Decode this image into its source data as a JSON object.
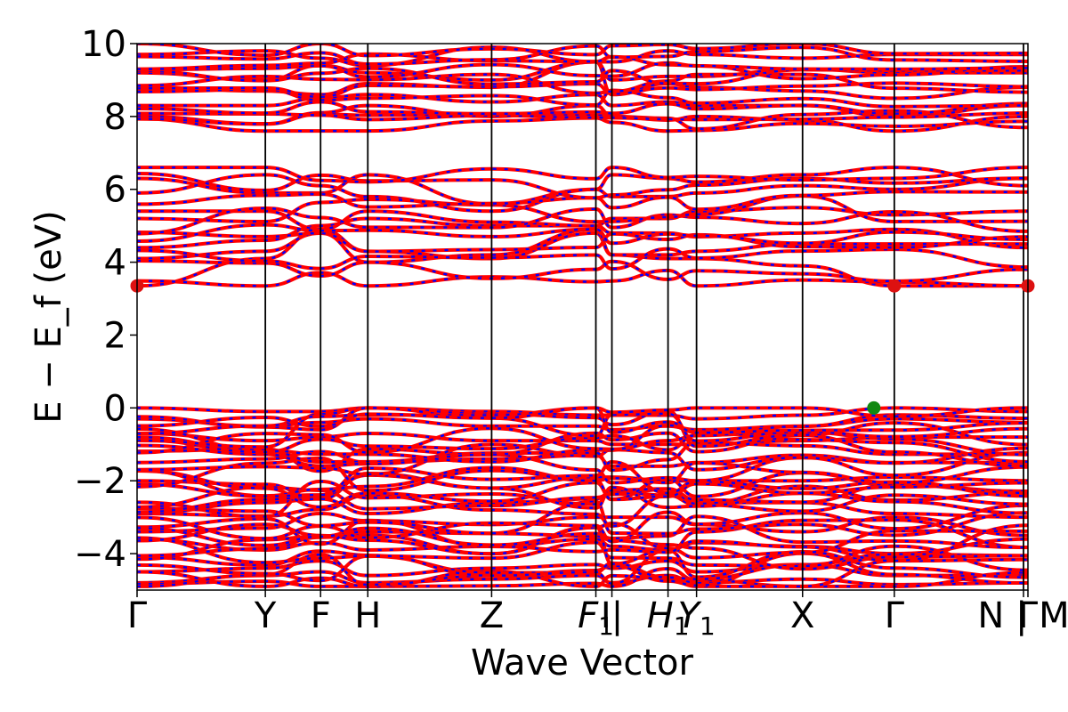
{
  "chart_data": {
    "type": "line",
    "title": "",
    "xlabel": "Wave Vector",
    "ylabel": "E − E_f (eV)",
    "ylim": [
      -5,
      10
    ],
    "yticks": [
      10,
      8,
      6,
      4,
      2,
      0,
      -2,
      -4
    ],
    "ytick_labels": [
      "10",
      "8",
      "6",
      "4",
      "2",
      "0",
      "−2",
      "−4"
    ],
    "xlim": [
      0,
      10
    ],
    "grid": false,
    "high_symmetry_points": [
      {
        "label": "Γ",
        "x": 0.0
      },
      {
        "label": "Y",
        "x": 1.44
      },
      {
        "label": "F",
        "x": 2.06
      },
      {
        "label": "H",
        "x": 2.59
      },
      {
        "label": "Z",
        "x": 3.98
      },
      {
        "label": "F",
        "sub": "1",
        "italic": true,
        "x": 5.15
      },
      {
        "label": "I|",
        "x": 5.33
      },
      {
        "label": "H",
        "sub": "1",
        "italic": true,
        "x": 5.96
      },
      {
        "label": "Y",
        "sub": "1",
        "italic": true,
        "x": 6.28
      },
      {
        "label": "X",
        "x": 7.47
      },
      {
        "label": "Γ",
        "x": 8.5
      },
      {
        "label": "N | M",
        "x": 9.95
      },
      {
        "label": "Γ",
        "x": 10.0
      }
    ],
    "band_style": {
      "solid_color": "#ff0000",
      "dash_color": "#0000ff"
    },
    "band_groups": [
      {
        "name": "valence",
        "e_min": -4.9,
        "e_max": 0.0,
        "count": 32
      },
      {
        "name": "conduction-lower",
        "e_min": 3.35,
        "e_max": 6.6,
        "count": 10
      },
      {
        "name": "conduction-upper",
        "e_min": 7.6,
        "e_max": 10.0,
        "count": 12
      }
    ],
    "series": [
      {
        "x": [
          0,
          1.44,
          2.06,
          2.59,
          3.98,
          5.15,
          5.33,
          5.96,
          6.28,
          7.47,
          8.5,
          10
        ],
        "values": [
          3.35,
          4.1,
          4.9,
          4.3,
          4.1,
          4.8,
          4.2,
          4.1,
          4.1,
          3.9,
          3.35,
          3.35
        ]
      },
      {
        "x": [
          0,
          1.44,
          2.06,
          2.59,
          3.98,
          5.15,
          5.33,
          5.96,
          6.28,
          7.47,
          8.5,
          10
        ],
        "values": [
          4.1,
          4.3,
          4.8,
          4.0,
          4.2,
          4.9,
          4.2,
          4.2,
          4.3,
          4.5,
          4.5,
          4.5
        ]
      },
      {
        "x": [
          0,
          1.44,
          2.06,
          2.59,
          3.98,
          5.15,
          5.33,
          5.96,
          6.28,
          7.47,
          8.5,
          10
        ],
        "values": [
          4.4,
          4.6,
          5.0,
          5.2,
          5.0,
          5.0,
          4.8,
          4.8,
          4.7,
          4.8,
          4.9,
          4.4
        ]
      },
      {
        "x": [
          0,
          1.44,
          2.06,
          2.59,
          3.98,
          5.15,
          5.33,
          5.96,
          6.28,
          7.47,
          8.5,
          10
        ],
        "values": [
          5.4,
          5.4,
          4.9,
          5.4,
          5.1,
          5.0,
          5.2,
          5.2,
          5.4,
          5.5,
          5.3,
          5.4
        ]
      },
      {
        "x": [
          0,
          1.44,
          2.06,
          2.59,
          3.98,
          5.15,
          5.33,
          5.96,
          6.28,
          7.47,
          8.5,
          10
        ],
        "values": [
          6.3,
          5.9,
          5.9,
          6.4,
          5.6,
          6.0,
          5.8,
          5.8,
          5.9,
          6.1,
          6.0,
          6.3
        ]
      },
      {
        "x": [
          0,
          1.44,
          2.06,
          2.59,
          3.98,
          5.15,
          5.33,
          5.96,
          6.28,
          7.47,
          8.5,
          10
        ],
        "values": [
          5.9,
          6.4,
          6.1,
          5.8,
          5.4,
          6.0,
          6.4,
          6.3,
          6.2,
          6.4,
          6.6,
          6.1
        ]
      },
      {
        "x": [
          0,
          1.44,
          2.06,
          2.59,
          3.98,
          5.15,
          5.33,
          5.96,
          6.28,
          7.47,
          8.5,
          10
        ],
        "values": [
          8.0,
          7.8,
          8.1,
          8.3,
          8.0,
          8.3,
          8.0,
          7.9,
          8.0,
          7.9,
          7.6,
          8.0
        ]
      },
      {
        "x": [
          0,
          1.44,
          2.06,
          2.59,
          3.98,
          5.15,
          5.33,
          5.96,
          6.28,
          7.47,
          8.5,
          10
        ],
        "values": [
          8.3,
          8.3,
          8.5,
          8.6,
          8.4,
          8.6,
          8.3,
          8.4,
          8.3,
          8.3,
          8.0,
          8.3
        ]
      },
      {
        "x": [
          0,
          1.44,
          2.06,
          2.59,
          3.98,
          5.15,
          5.33,
          5.96,
          6.28,
          7.47,
          8.5,
          10
        ],
        "values": [
          8.8,
          8.7,
          8.6,
          8.9,
          8.8,
          9.5,
          8.6,
          8.9,
          8.8,
          8.7,
          8.5,
          8.8
        ]
      },
      {
        "x": [
          0,
          1.44,
          2.06,
          2.59,
          3.98,
          5.15,
          5.33,
          5.96,
          6.28,
          7.47,
          8.5,
          10
        ],
        "values": [
          9.2,
          9.0,
          9.4,
          9.2,
          9.0,
          9.5,
          9.0,
          9.1,
          9.1,
          9.3,
          9.2,
          9.2
        ]
      },
      {
        "x": [
          0,
          1.44,
          2.06,
          2.59,
          3.98,
          5.15,
          5.33,
          5.96,
          6.28,
          7.47,
          8.5,
          10
        ],
        "values": [
          9.7,
          9.8,
          9.6,
          9.4,
          9.9,
          9.5,
          9.5,
          9.8,
          9.7,
          9.6,
          9.7,
          9.7
        ]
      },
      {
        "x": [
          0,
          1.44,
          2.06,
          2.59,
          3.98,
          5.15,
          5.33,
          5.96,
          6.28,
          7.47,
          8.5,
          10
        ],
        "values": [
          0.0,
          -0.1,
          -0.1,
          0.0,
          -0.1,
          -0.2,
          -0.2,
          -0.2,
          -0.3,
          -0.2,
          0.0,
          -0.1
        ]
      },
      {
        "x": [
          0,
          1.44,
          2.06,
          2.59,
          3.98,
          5.15,
          5.33,
          5.96,
          6.28,
          7.47,
          8.5,
          10
        ],
        "values": [
          -0.3,
          -0.5,
          -0.4,
          -0.3,
          -0.5,
          -0.5,
          -0.6,
          -0.5,
          -0.6,
          -0.5,
          -0.3,
          -0.4
        ]
      },
      {
        "x": [
          0,
          1.44,
          2.06,
          2.59,
          3.98,
          5.15,
          5.33,
          5.96,
          6.28,
          7.47,
          8.5,
          10
        ],
        "values": [
          -0.7,
          -0.9,
          -0.8,
          -0.7,
          -0.9,
          -0.9,
          -1.0,
          -1.0,
          -1.0,
          -0.9,
          -0.8,
          -0.8
        ]
      },
      {
        "x": [
          0,
          1.44,
          2.06,
          2.59,
          3.98,
          5.15,
          5.33,
          5.96,
          6.28,
          7.47,
          8.5,
          10
        ],
        "values": [
          -1.5,
          -1.4,
          -1.2,
          -1.5,
          -1.4,
          -1.3,
          -1.6,
          -1.6,
          -1.5,
          -1.3,
          -1.5,
          -1.5
        ]
      },
      {
        "x": [
          0,
          1.44,
          2.06,
          2.59,
          3.98,
          5.15,
          5.33,
          5.96,
          6.28,
          7.47,
          8.5,
          10
        ],
        "values": [
          -2.0,
          -2.1,
          -2.5,
          -1.8,
          -2.2,
          -1.9,
          -1.9,
          -2.0,
          -2.0,
          -2.0,
          -1.9,
          -2.0
        ]
      },
      {
        "x": [
          0,
          1.44,
          2.06,
          2.59,
          3.98,
          5.15,
          5.33,
          5.96,
          6.28,
          7.47,
          8.5,
          10
        ],
        "values": [
          -2.9,
          -2.6,
          -2.5,
          -2.9,
          -2.6,
          -2.5,
          -2.3,
          -2.4,
          -2.6,
          -2.6,
          -2.9,
          -3.0
        ]
      },
      {
        "x": [
          0,
          1.44,
          2.06,
          2.59,
          3.98,
          5.15,
          5.33,
          5.96,
          6.28,
          7.47,
          8.5,
          10
        ],
        "values": [
          -3.4,
          -3.3,
          -2.9,
          -3.1,
          -3.2,
          -3.0,
          -3.0,
          -3.0,
          -3.2,
          -3.4,
          -3.0,
          -3.5
        ]
      },
      {
        "x": [
          0,
          1.44,
          2.06,
          2.59,
          3.98,
          5.15,
          5.33,
          5.96,
          6.28,
          7.47,
          8.5,
          10
        ],
        "values": [
          -3.6,
          -3.9,
          -3.7,
          -3.9,
          -3.8,
          -3.6,
          -3.8,
          -3.9,
          -3.7,
          -3.8,
          -4.0,
          -3.6
        ]
      },
      {
        "x": [
          0,
          1.44,
          2.06,
          2.59,
          3.98,
          5.15,
          5.33,
          5.96,
          6.28,
          7.47,
          8.5,
          10
        ],
        "values": [
          -4.5,
          -4.4,
          -4.2,
          -4.6,
          -4.4,
          -4.3,
          -4.4,
          -4.2,
          -4.5,
          -4.3,
          -4.6,
          -4.6
        ]
      },
      {
        "x": [
          0,
          1.44,
          2.06,
          2.59,
          3.98,
          5.15,
          5.33,
          5.96,
          6.28,
          7.47,
          8.5,
          10
        ],
        "values": [
          -4.8,
          -4.6,
          -4.5,
          -4.8,
          -4.7,
          -4.6,
          -4.8,
          -4.6,
          -4.8,
          -4.7,
          -4.85,
          -4.8
        ]
      }
    ],
    "markers": [
      {
        "name": "cbm",
        "x": 0.0,
        "y": 3.35,
        "color": "#dd1111"
      },
      {
        "name": "cbm",
        "x": 8.5,
        "y": 3.35,
        "color": "#dd1111"
      },
      {
        "name": "cbm",
        "x": 10.0,
        "y": 3.35,
        "color": "#dd1111"
      },
      {
        "name": "vbm",
        "x": 8.27,
        "y": 0.0,
        "color": "#118811"
      }
    ]
  }
}
